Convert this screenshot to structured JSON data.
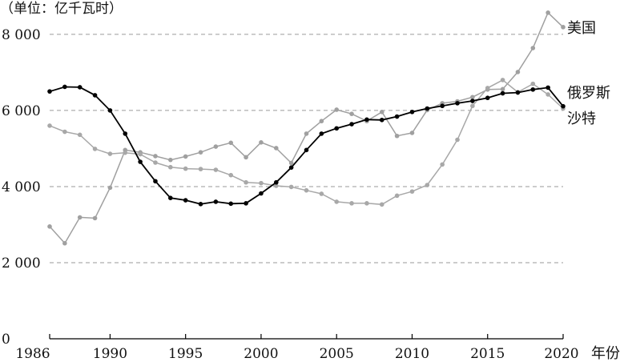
{
  "chart_data": {
    "type": "line",
    "unit_label": "（单位：亿千瓦时）",
    "x_unit_label": "年份",
    "x": [
      1986,
      1987,
      1988,
      1989,
      1990,
      1991,
      1992,
      1993,
      1994,
      1995,
      1996,
      1997,
      1998,
      1999,
      2000,
      2001,
      2002,
      2003,
      2004,
      2005,
      2006,
      2007,
      2008,
      2009,
      2010,
      2011,
      2012,
      2013,
      2014,
      2015,
      2016,
      2017,
      2018,
      2019,
      2020
    ],
    "x_ticks": [
      "1986",
      "1990",
      "1995",
      "2000",
      "2005",
      "2010",
      "2015",
      "2020"
    ],
    "x_tick_values": [
      1986,
      1990,
      1995,
      2000,
      2005,
      2010,
      2015,
      2020
    ],
    "y_ticks": [
      "0",
      "2 000",
      "4 000",
      "6 000",
      "8 000"
    ],
    "y_tick_values": [
      0,
      2000,
      4000,
      6000,
      8000
    ],
    "xlim": [
      1986,
      2020
    ],
    "ylim": [
      0,
      8650
    ],
    "grid": "horizontal-dashed",
    "series": [
      {
        "name": "美国",
        "color": "#a0a0a0",
        "values": [
          2950,
          2510,
          3190,
          3170,
          3970,
          4960,
          4900,
          4800,
          4700,
          4790,
          4900,
          5050,
          5150,
          4770,
          5160,
          5010,
          4620,
          5390,
          5720,
          6020,
          5910,
          5720,
          5960,
          5330,
          5410,
          6010,
          6190,
          6240,
          6350,
          6550,
          6560,
          7010,
          7640,
          8570,
          8190
        ]
      },
      {
        "name": "俄罗斯",
        "color": "#000000",
        "values": [
          6500,
          6620,
          6610,
          6400,
          6000,
          5390,
          4650,
          4140,
          3700,
          3640,
          3540,
          3600,
          3550,
          3560,
          3820,
          4110,
          4500,
          4960,
          5390,
          5530,
          5640,
          5760,
          5750,
          5840,
          5960,
          6050,
          6120,
          6190,
          6250,
          6330,
          6450,
          6470,
          6550,
          6600,
          6110
        ]
      },
      {
        "name": "沙特",
        "color": "#a8a8a8",
        "values": [
          5600,
          5440,
          5360,
          4990,
          4860,
          4890,
          4850,
          4630,
          4510,
          4470,
          4460,
          4440,
          4300,
          4110,
          4090,
          4020,
          3990,
          3900,
          3810,
          3600,
          3560,
          3560,
          3530,
          3760,
          3870,
          4040,
          4580,
          5230,
          6120,
          6590,
          6800,
          6480,
          6700,
          6420,
          6050
        ]
      }
    ]
  }
}
